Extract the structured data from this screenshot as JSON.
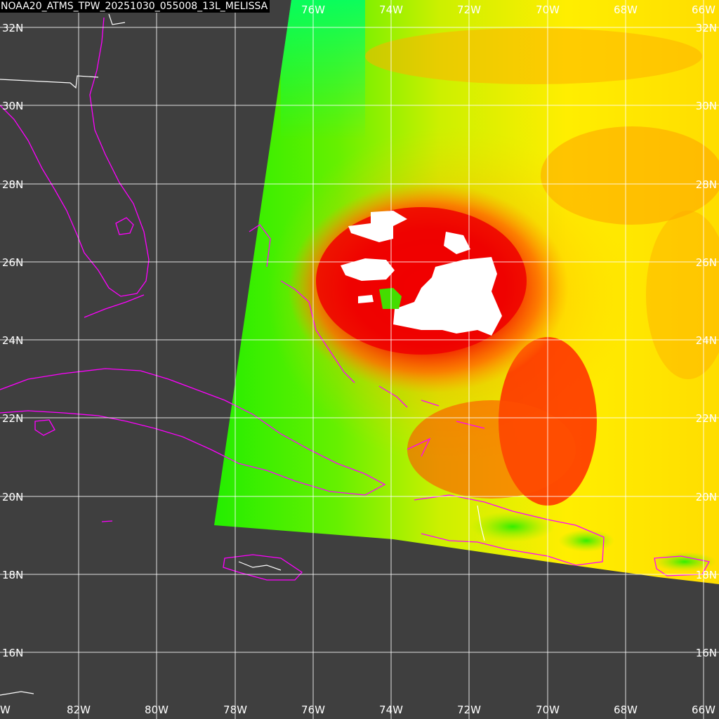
{
  "title": "NOAA20_ATMS_TPW_20251030_055008_13L_MELISSA",
  "colors": {
    "background": "#3f3f3f",
    "coastline": "#ff00ff",
    "borders": "#ffffff",
    "grid": "#ffffff",
    "no_data_saturated": "#ffffff"
  },
  "grid": {
    "longitudes": [
      "82W",
      "80W",
      "78W",
      "76W",
      "74W",
      "72W",
      "70W",
      "68W",
      "66W"
    ],
    "latitudes": [
      "32N",
      "30N",
      "28N",
      "26N",
      "24N",
      "22N",
      "20N",
      "18N",
      "16N"
    ],
    "edge_lon_label": "W"
  },
  "features": {
    "storm_name": "MELISSA",
    "storm_center": "near 25N 73W"
  }
}
